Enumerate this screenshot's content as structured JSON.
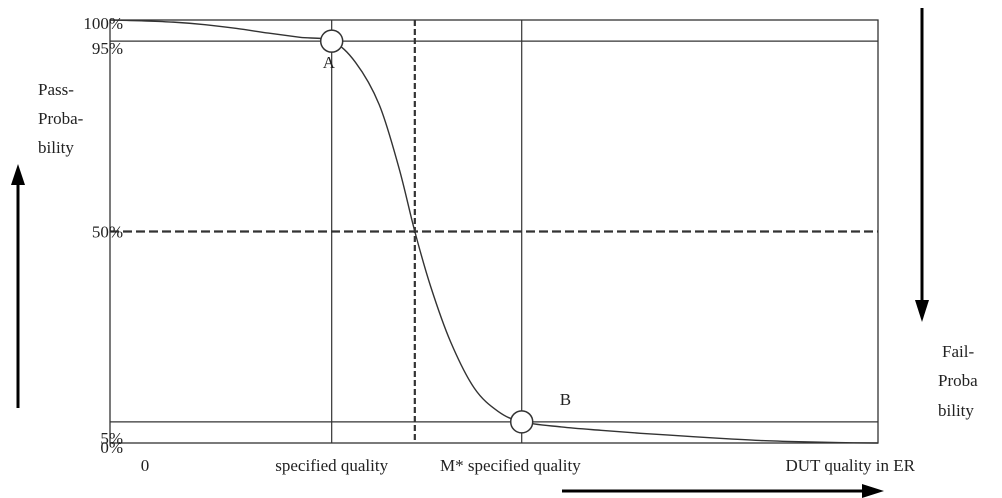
{
  "chart_data": {
    "type": "line",
    "title": "",
    "ylabel_lines": [
      "Pass-",
      "Proba-",
      "bility"
    ],
    "ylabel_right_lines": [
      "Fail-",
      "Proba",
      "bility"
    ],
    "y_ticks": [
      {
        "value": 100,
        "label": "100%"
      },
      {
        "value": 95,
        "label": "95%"
      },
      {
        "value": 50,
        "label": "50%"
      },
      {
        "value": 5,
        "label": "5%"
      },
      {
        "value": 0,
        "label": "0%"
      }
    ],
    "x_labels": [
      {
        "value": 0,
        "label": "0"
      },
      {
        "value": 2.6,
        "label": "specified quality"
      },
      {
        "value": 5.0,
        "label": "M* specified quality"
      },
      {
        "value": 8.6,
        "label": "DUT quality in ER"
      }
    ],
    "xlim": [
      -0.2,
      9.5
    ],
    "ylim": [
      0,
      100
    ],
    "grid": false,
    "vertical_lines": [
      2.6,
      5.0
    ],
    "vertical_dashed": [
      3.65
    ],
    "horizontal_lines": [
      95,
      5
    ],
    "horizontal_dashed": [
      50
    ],
    "series": [
      {
        "x": [
          -0.2,
          0.2,
          0.6,
          1.0,
          1.4,
          1.8,
          2.2,
          2.6,
          2.9,
          3.2,
          3.45,
          3.65,
          3.85,
          4.1,
          4.4,
          4.7,
          5.0,
          5.5,
          6.0,
          6.5,
          7.0,
          7.5,
          8.0,
          8.5,
          9.0,
          9.5
        ],
        "y": [
          100,
          99.8,
          99.5,
          98.9,
          98.0,
          96.9,
          95.9,
          95.0,
          90.0,
          80.0,
          65.0,
          50.0,
          37.0,
          24.0,
          13.0,
          7.5,
          5.0,
          3.8,
          3.0,
          2.3,
          1.7,
          1.1,
          0.6,
          0.3,
          0.1,
          0.0
        ]
      }
    ],
    "points": [
      {
        "label": "A",
        "x": 2.6,
        "y": 95
      },
      {
        "label": "B",
        "x": 5.0,
        "y": 5
      }
    ]
  }
}
